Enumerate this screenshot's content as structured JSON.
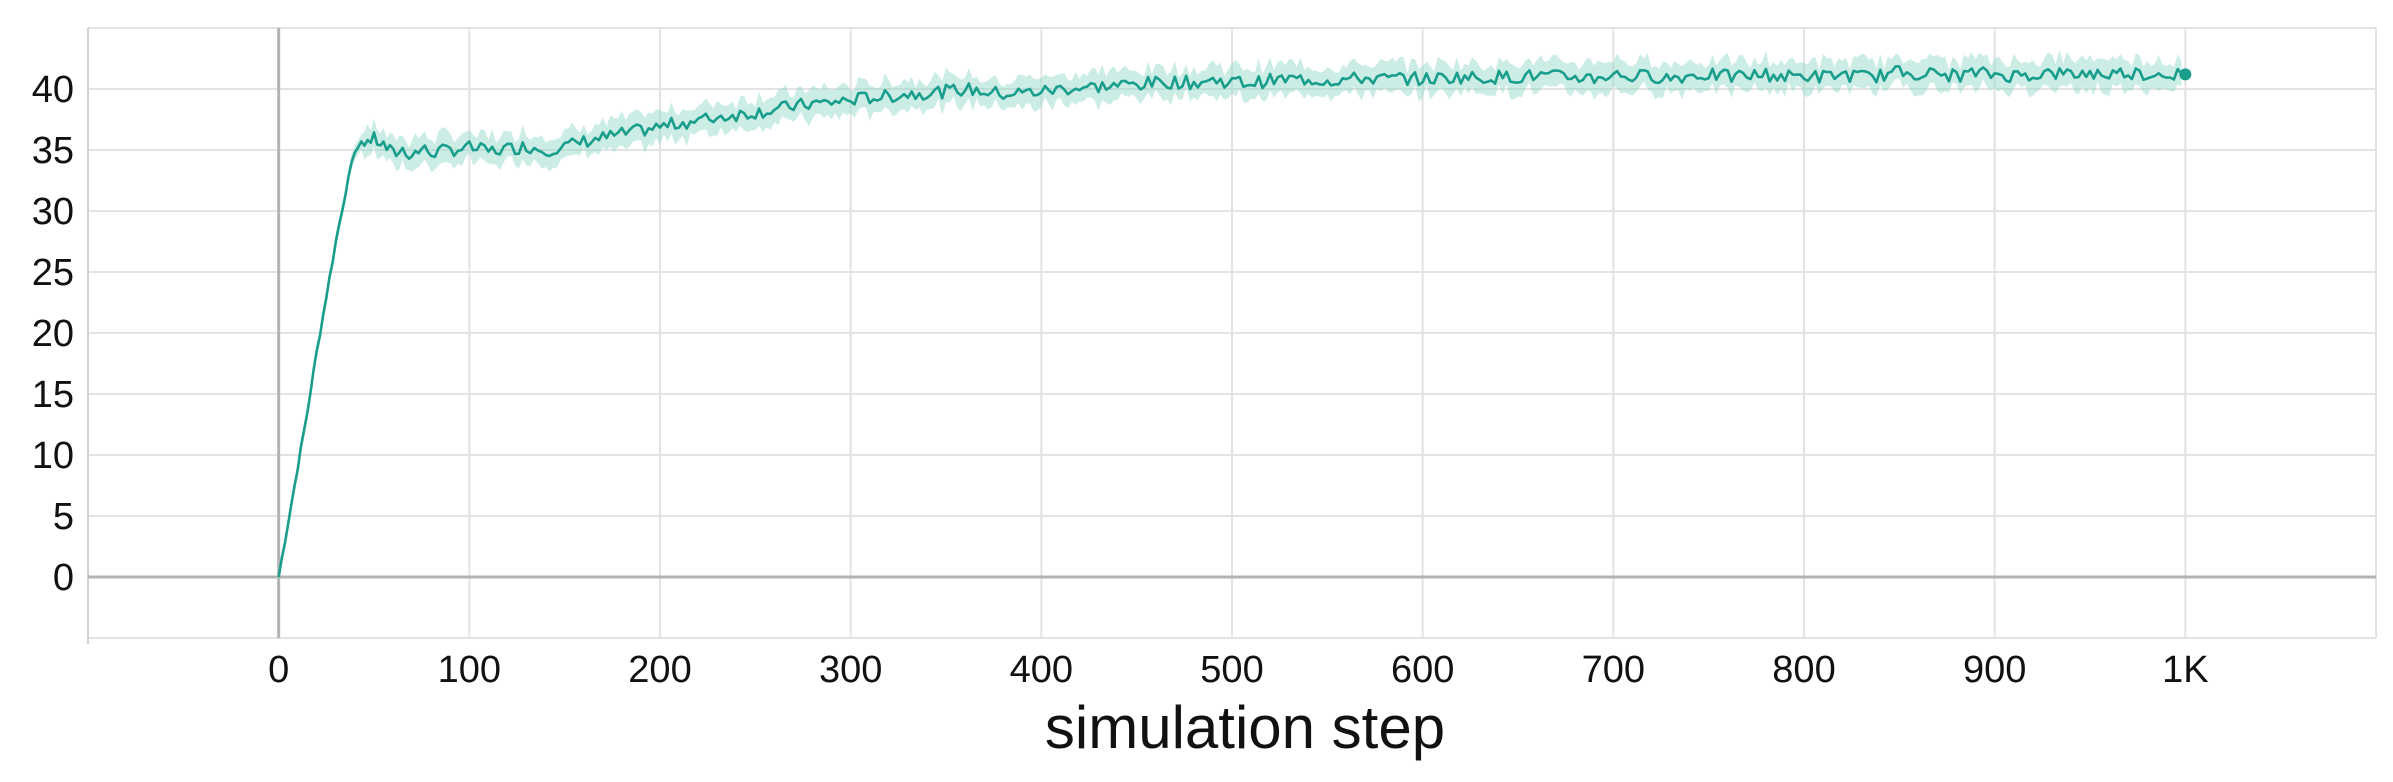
{
  "chart_data": {
    "type": "line",
    "title": "",
    "xlabel": "simulation step",
    "ylabel": "",
    "xlim": [
      -100,
      1100
    ],
    "ylim": [
      -5,
      45
    ],
    "x_ticks": [
      0,
      100,
      200,
      300,
      400,
      500,
      600,
      700,
      800,
      900,
      1000
    ],
    "x_tick_labels": [
      "0",
      "100",
      "200",
      "300",
      "400",
      "500",
      "600",
      "700",
      "800",
      "900",
      "1K"
    ],
    "y_ticks": [
      0,
      5,
      10,
      15,
      20,
      25,
      30,
      35,
      40
    ],
    "y_tick_labels": [
      "0",
      "5",
      "10",
      "15",
      "20",
      "25",
      "30",
      "35",
      "40"
    ],
    "grid": true,
    "legend": "none",
    "colors": {
      "line": "#1a9e8c",
      "band": "#8fd6c8",
      "grid": "#e3e3e3",
      "axis": "#b3b3b3"
    },
    "series": [
      {
        "x": [
          0,
          5,
          10,
          15,
          20,
          25,
          30,
          35,
          40,
          45,
          50,
          55,
          60,
          65,
          70,
          75,
          80,
          90,
          100,
          110,
          120,
          130,
          140,
          150,
          160,
          170,
          180,
          190,
          200,
          210,
          220,
          230,
          240,
          250,
          260,
          270,
          280,
          290,
          300,
          310,
          320,
          330,
          340,
          350,
          360,
          370,
          380,
          390,
          400,
          410,
          420,
          430,
          440,
          450,
          460,
          470,
          480,
          490,
          500,
          510,
          520,
          530,
          540,
          550,
          560,
          570,
          580,
          590,
          600,
          610,
          620,
          630,
          640,
          650,
          660,
          670,
          680,
          690,
          700,
          710,
          720,
          730,
          740,
          750,
          760,
          770,
          780,
          790,
          800,
          810,
          820,
          830,
          840,
          850,
          860,
          870,
          880,
          890,
          900,
          910,
          920,
          930,
          940,
          950,
          960,
          970,
          980,
          990,
          1000
        ],
        "values": [
          0,
          4.5,
          9,
          13.5,
          18.5,
          23,
          27.5,
          31.5,
          35,
          35.7,
          35.9,
          35.4,
          34.7,
          35.0,
          34.6,
          35.1,
          34.8,
          35.0,
          35.2,
          34.9,
          35.1,
          35.3,
          35.0,
          35.3,
          35.7,
          36.0,
          36.3,
          36.6,
          36.9,
          37.2,
          37.4,
          37.7,
          37.9,
          38.1,
          38.3,
          38.6,
          38.8,
          38.9,
          39.1,
          39.3,
          39.4,
          39.6,
          39.7,
          39.8,
          40.0,
          39.8,
          39.6,
          39.7,
          39.8,
          40.0,
          40.1,
          40.2,
          40.3,
          40.4,
          40.5,
          40.6,
          40.5,
          40.7,
          40.6,
          40.5,
          40.7,
          40.8,
          40.8,
          40.7,
          40.8,
          40.9,
          40.8,
          40.9,
          40.8,
          40.9,
          41.0,
          40.9,
          41.0,
          41.0,
          41.1,
          41.0,
          41.0,
          40.9,
          41.2,
          41.0,
          41.1,
          40.9,
          41.1,
          41.2,
          41.0,
          41.1,
          41.2,
          41.0,
          41.1,
          41.0,
          41.2,
          41.0,
          41.1,
          41.4,
          41.3,
          41.2,
          41.1,
          41.3,
          41.2,
          41.1,
          41.2,
          41.3,
          41.2,
          41.3,
          41.2,
          41.4,
          41.2,
          41.3,
          41.2
        ]
      }
    ]
  }
}
